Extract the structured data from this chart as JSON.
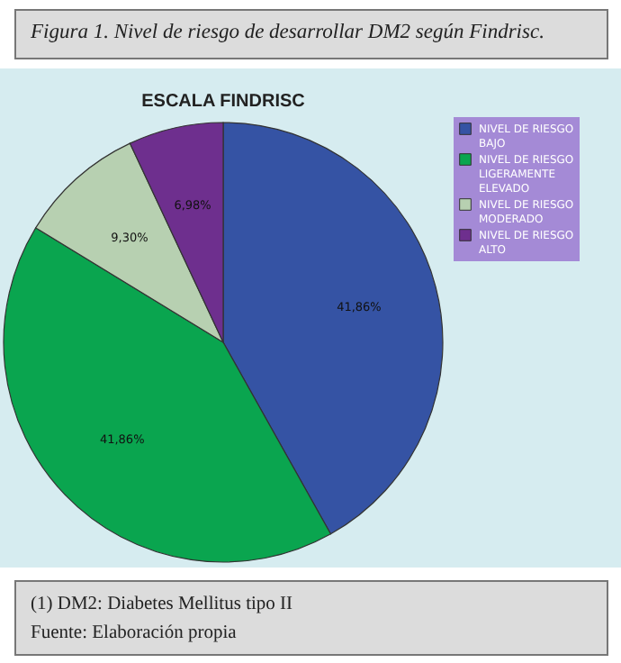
{
  "chart_data": {
    "type": "pie",
    "title": "Figura 1. Nivel de riesgo de desarrollar DM2 según Findrisc.",
    "subtitle": "ESCALA FINDRISC",
    "categories": [
      "NIVEL DE RIESGO BAJO",
      "NIVEL DE RIESGO LIGERAMENTE ELEVADO",
      "NIVEL DE RIESGO MODERADO",
      "NIVEL DE RIESGO ALTO"
    ],
    "values": [
      41.86,
      41.86,
      9.3,
      6.98
    ],
    "value_labels": [
      "41,86%",
      "41,86%",
      "9,30%",
      "6,98%"
    ],
    "colors": [
      "#3553a4",
      "#0aa54f",
      "#b7d0b1",
      "#6e2f8e"
    ],
    "legend": "top right",
    "annotations": [
      "(1) DM2: Diabetes Mellitus tipo II",
      "Fuente: Elaboración propia"
    ]
  }
}
